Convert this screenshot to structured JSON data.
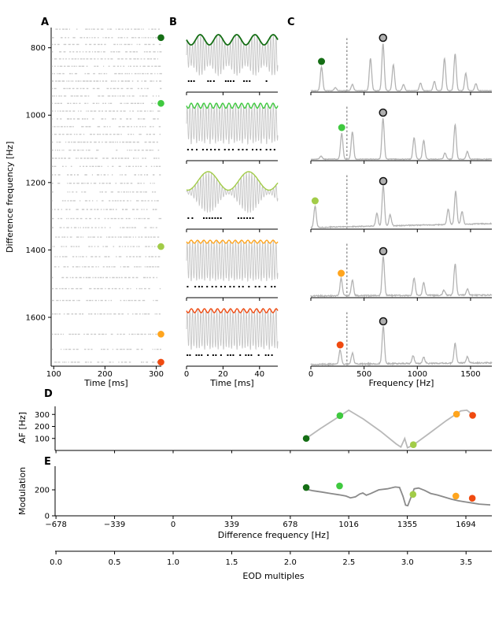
{
  "colors": {
    "stim_colors": [
      "#156e15",
      "#3fc93f",
      "#a2cc48",
      "#ffa51e",
      "#f04a10"
    ],
    "raster_gray": "#c9c9c9",
    "carrier_gray": "#c6c6c6",
    "spectrum_gray": "#b3b3b3",
    "d_line_gray": "#b8b8b8",
    "e_line_gray": "#8a8a8a",
    "peak_circle_fill": "#b0b0b0",
    "axis_black": "#000000",
    "dashed_line": "#555555"
  },
  "panel_labels": {
    "a": "A",
    "b": "B",
    "c": "C",
    "d": "D",
    "e": "E"
  },
  "axis_titles": {
    "a_x": "Time [ms]",
    "a_y": "Difference frequency [Hz]",
    "b_x": "Time [ms]",
    "c_x": "Frequency [Hz]",
    "d_y": "AF [Hz]",
    "e_y": "Modulation",
    "e_x": "Difference frequency [Hz]",
    "eod_x": "EOD multiples"
  },
  "chart_data": [
    {
      "id": "A",
      "type": "raster",
      "title": "",
      "xlabel": "Time [ms]",
      "ylabel": "Difference frequency [Hz]",
      "xticks": [
        100,
        200,
        300
      ],
      "yticks": [
        800,
        1000,
        1200,
        1400,
        1600
      ],
      "xlim": [
        95,
        310
      ],
      "ylim": [
        740,
        1745
      ],
      "row_frequencies_hz": [
        745,
        770,
        790,
        812,
        833,
        855,
        877,
        899,
        921,
        943,
        965,
        988,
        1011,
        1034,
        1057,
        1080,
        1104,
        1128,
        1152,
        1177,
        1202,
        1228,
        1254,
        1280,
        1307,
        1334,
        1362,
        1390,
        1420,
        1450,
        1482,
        1515,
        1550,
        1590,
        1650,
        1695,
        1733
      ],
      "marked_rows": [
        {
          "freq_hz": 770,
          "color_index": 0
        },
        {
          "freq_hz": 965,
          "color_index": 1
        },
        {
          "freq_hz": 1390,
          "color_index": 2
        },
        {
          "freq_hz": 1650,
          "color_index": 3
        },
        {
          "freq_hz": 1733,
          "color_index": 4
        }
      ]
    },
    {
      "id": "B",
      "type": "line",
      "subtype": "am-waveforms",
      "xlabel": "Time [ms]",
      "xticks": [
        0,
        20,
        40
      ],
      "xlim": [
        0,
        50
      ],
      "carrier_freq_hz": 678,
      "rows": [
        {
          "color_index": 0,
          "am_freq_hz": 100,
          "depth": 0.5,
          "phase_ms": 0,
          "spike_times_ms": [
            1.2,
            2.6,
            4.1,
            11.8,
            13.2,
            15.0,
            21.5,
            22.8,
            24.2,
            25.8,
            31.5,
            33.0,
            34.6,
            43.8
          ]
        },
        {
          "color_index": 1,
          "am_freq_hz": 290,
          "depth": 0.25,
          "phase_ms": 0,
          "spike_times_ms": [
            0.8,
            3.1,
            5.6,
            9.0,
            11.2,
            13.4,
            15.6,
            17.8,
            21.0,
            23.2,
            25.4,
            28.6,
            30.8,
            33.0,
            36.2,
            38.4,
            40.6,
            43.8,
            46.0,
            48.2
          ]
        },
        {
          "color_index": 2,
          "am_freq_hz": 45,
          "depth": 0.9,
          "phase_ms": 17.4,
          "spike_times_ms": [
            1.0,
            3.2,
            9.5,
            11.0,
            12.6,
            14.1,
            15.7,
            17.2,
            18.8,
            28.4,
            30.0,
            31.6,
            33.2,
            34.8,
            36.4
          ]
        },
        {
          "color_index": 3,
          "am_freq_hz": 290,
          "depth": 0.15,
          "phase_ms": 0,
          "spike_times_ms": [
            0.6,
            4.8,
            6.9,
            8.5,
            11.3,
            14.1,
            16.2,
            19.0,
            21.1,
            23.9,
            26.0,
            28.8,
            30.9,
            34.2,
            37.8,
            39.9,
            43.2,
            46.6,
            48.4
          ]
        },
        {
          "color_index": 4,
          "am_freq_hz": 280,
          "depth": 0.2,
          "phase_ms": 0,
          "spike_times_ms": [
            0.5,
            1.9,
            5.4,
            6.8,
            8.3,
            11.7,
            14.6,
            16.1,
            18.9,
            22.6,
            24.1,
            25.6,
            29.4,
            32.5,
            34.0,
            35.5,
            39.5,
            43.4,
            44.9,
            46.8
          ]
        }
      ]
    },
    {
      "id": "C",
      "type": "line",
      "subtype": "power-spectra",
      "xlabel": "Frequency [Hz]",
      "xticks": [
        0,
        500,
        1000,
        1500
      ],
      "xlim": [
        0,
        1700
      ],
      "dashed_line_hz": 339,
      "eod_peak_hz": 678,
      "rows": [
        {
          "color_index": 0,
          "marker_hz": 100,
          "noise": 0.7,
          "drift": 0,
          "peaks": [
            [
              100,
              30
            ],
            [
              230,
              4
            ],
            [
              390,
              8
            ],
            [
              560,
              41
            ],
            [
              678,
              60
            ],
            [
              775,
              33
            ],
            [
              870,
              8
            ],
            [
              1030,
              10
            ],
            [
              1160,
              12
            ],
            [
              1255,
              41
            ],
            [
              1355,
              47
            ],
            [
              1455,
              22
            ],
            [
              1550,
              9
            ]
          ]
        },
        {
          "color_index": 1,
          "marker_hz": 290,
          "noise": 0.8,
          "drift": 0,
          "peaks": [
            [
              95,
              4
            ],
            [
              290,
              33
            ],
            [
              390,
              35
            ],
            [
              678,
              52
            ],
            [
              970,
              27
            ],
            [
              1060,
              24
            ],
            [
              1260,
              8
            ],
            [
              1355,
              44
            ],
            [
              1470,
              10
            ]
          ]
        },
        {
          "color_index": 2,
          "marker_hz": 40,
          "noise": 1.2,
          "drift": 5,
          "peaks": [
            [
              40,
              27
            ],
            [
              620,
              16
            ],
            [
              680,
              52
            ],
            [
              745,
              14
            ],
            [
              1290,
              20
            ],
            [
              1360,
              42
            ],
            [
              1420,
              16
            ]
          ]
        },
        {
          "color_index": 3,
          "marker_hz": 285,
          "noise": 1.6,
          "drift": 1,
          "peaks": [
            [
              285,
              22
            ],
            [
              390,
              20
            ],
            [
              680,
              50
            ],
            [
              970,
              22
            ],
            [
              1060,
              16
            ],
            [
              1250,
              7
            ],
            [
              1355,
              40
            ],
            [
              1470,
              8
            ]
          ]
        },
        {
          "color_index": 4,
          "marker_hz": 275,
          "noise": 1.6,
          "drift": 2,
          "peaks": [
            [
              275,
              18
            ],
            [
              390,
              14
            ],
            [
              680,
              48
            ],
            [
              960,
              10
            ],
            [
              1060,
              8
            ],
            [
              1355,
              25
            ],
            [
              1470,
              8
            ]
          ]
        }
      ]
    },
    {
      "id": "D",
      "type": "line",
      "ylabel": "AF [Hz]",
      "yticks": [
        100,
        200,
        300
      ],
      "ylim": [
        0,
        380
      ],
      "xlim": [
        -683,
        1845
      ],
      "line": [
        [
          770,
          100
        ],
        [
          850,
          180
        ],
        [
          965,
          287
        ],
        [
          1016,
          335
        ],
        [
          1100,
          262
        ],
        [
          1200,
          160
        ],
        [
          1290,
          55
        ],
        [
          1318,
          28
        ],
        [
          1340,
          100
        ],
        [
          1356,
          22
        ],
        [
          1390,
          45
        ],
        [
          1480,
          140
        ],
        [
          1580,
          248
        ],
        [
          1665,
          330
        ],
        [
          1700,
          335
        ],
        [
          1733,
          298
        ],
        [
          1748,
          290
        ]
      ],
      "dots": [
        [
          770,
          100,
          0
        ],
        [
          965,
          290,
          1
        ],
        [
          1390,
          48,
          2
        ],
        [
          1640,
          302,
          3
        ],
        [
          1733,
          292,
          4
        ]
      ]
    },
    {
      "id": "E",
      "type": "line",
      "ylabel": "Modulation",
      "xlabel": "Difference frequency [Hz]",
      "yticks": [
        0,
        200
      ],
      "ylim": [
        0,
        382
      ],
      "xlim": [
        -683,
        1845
      ],
      "xticks": [
        -678,
        -339,
        0,
        339,
        678,
        1016,
        1355,
        1694
      ],
      "xtick_labels": [
        "−678",
        "−339",
        "0",
        "339",
        "678",
        "1016",
        "1355",
        "1694"
      ],
      "line": [
        [
          770,
          205
        ],
        [
          810,
          193
        ],
        [
          860,
          183
        ],
        [
          910,
          172
        ],
        [
          960,
          162
        ],
        [
          1000,
          152
        ],
        [
          1026,
          138
        ],
        [
          1055,
          146
        ],
        [
          1080,
          168
        ],
        [
          1098,
          176
        ],
        [
          1118,
          158
        ],
        [
          1145,
          172
        ],
        [
          1190,
          200
        ],
        [
          1240,
          208
        ],
        [
          1285,
          222
        ],
        [
          1310,
          218
        ],
        [
          1330,
          150
        ],
        [
          1345,
          82
        ],
        [
          1358,
          78
        ],
        [
          1372,
          128
        ],
        [
          1395,
          208
        ],
        [
          1420,
          214
        ],
        [
          1455,
          196
        ],
        [
          1490,
          172
        ],
        [
          1530,
          160
        ],
        [
          1570,
          144
        ],
        [
          1610,
          128
        ],
        [
          1650,
          116
        ],
        [
          1695,
          106
        ],
        [
          1730,
          99
        ],
        [
          1770,
          90
        ],
        [
          1835,
          84
        ]
      ],
      "dots": [
        [
          770,
          218,
          0
        ],
        [
          963,
          230,
          1
        ],
        [
          1388,
          165,
          2
        ],
        [
          1636,
          152,
          3
        ],
        [
          1731,
          135,
          4
        ]
      ]
    },
    {
      "id": "EOD",
      "type": "line",
      "subtype": "secondary-axis",
      "xlabel": "EOD multiples",
      "xticks": [
        0.0,
        0.5,
        1.0,
        1.5,
        2.0,
        2.5,
        3.0,
        3.5
      ],
      "xtick_labels": [
        "0.0",
        "0.5",
        "1.0",
        "1.5",
        "2.0",
        "2.5",
        "3.0",
        "3.5"
      ],
      "eod_freq_hz": 678
    }
  ]
}
